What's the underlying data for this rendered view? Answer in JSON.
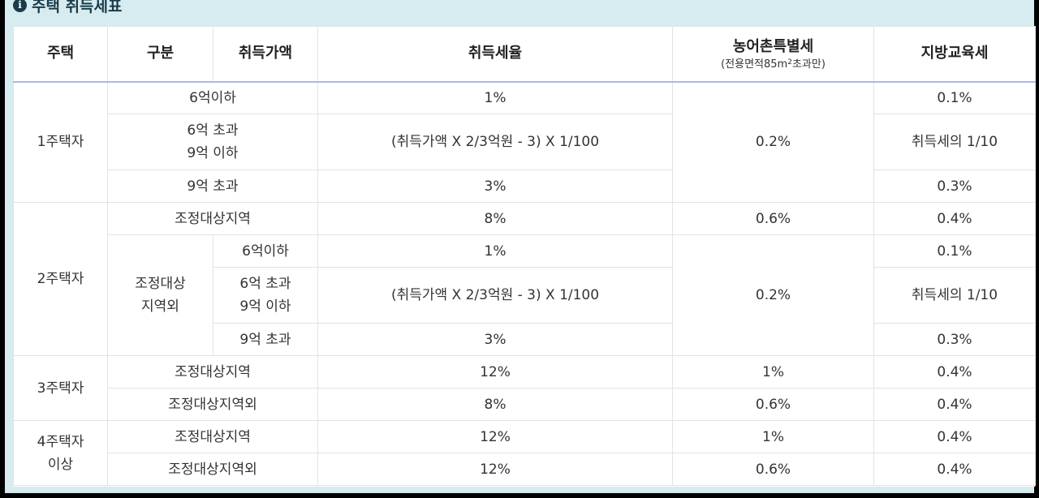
{
  "caption": {
    "icon": "info-icon",
    "text": "주택 취득세표"
  },
  "header": {
    "col1": "주택",
    "col2": "구분",
    "col3": "취득가액",
    "col4": "취득세율",
    "col5": "농어촌특별세",
    "col5_note_a": "(전용면적85m",
    "col5_note_sup": "2",
    "col5_note_b": "초과만)",
    "col6": "지방교육세"
  },
  "rows": {
    "h1": {
      "label": "1주택자",
      "r1": {
        "cat": "6억이하",
        "rate": "1%",
        "edu": "0.1%"
      },
      "r2": {
        "cat_a": "6억 초과",
        "cat_b": "9억 이하",
        "rate": "(취득가액 X 2/3억원 - 3) X 1/100",
        "edu": "취득세의 1/10"
      },
      "r3": {
        "cat": "9억 초과",
        "rate": "3%",
        "edu": "0.3%"
      },
      "farm": "0.2%"
    },
    "h2": {
      "label": "2주택자",
      "r1": {
        "cat": "조정대상지역",
        "rate": "8%",
        "farm": "0.6%",
        "edu": "0.4%"
      },
      "out_a": "조정대상",
      "out_b": "지역외",
      "r2": {
        "amt": "6억이하",
        "rate": "1%",
        "edu": "0.1%"
      },
      "r3": {
        "amt_a": "6억 초과",
        "amt_b": "9억 이하",
        "rate": "(취득가액 X 2/3억원 - 3) X 1/100",
        "edu": "취득세의 1/10"
      },
      "r4": {
        "amt": "9억 초과",
        "rate": "3%",
        "edu": "0.3%"
      },
      "farm": "0.2%"
    },
    "h3": {
      "label": "3주택자",
      "r1": {
        "cat": "조정대상지역",
        "rate": "12%",
        "farm": "1%",
        "edu": "0.4%"
      },
      "r2": {
        "cat": "조정대상지역외",
        "rate": "8%",
        "farm": "0.6%",
        "edu": "0.4%"
      }
    },
    "h4": {
      "label_a": "4주택자",
      "label_b": "이상",
      "r1": {
        "cat": "조정대상지역",
        "rate": "12%",
        "farm": "1%",
        "edu": "0.4%"
      },
      "r2": {
        "cat": "조정대상지역외",
        "rate": "12%",
        "farm": "0.6%",
        "edu": "0.4%"
      }
    }
  }
}
